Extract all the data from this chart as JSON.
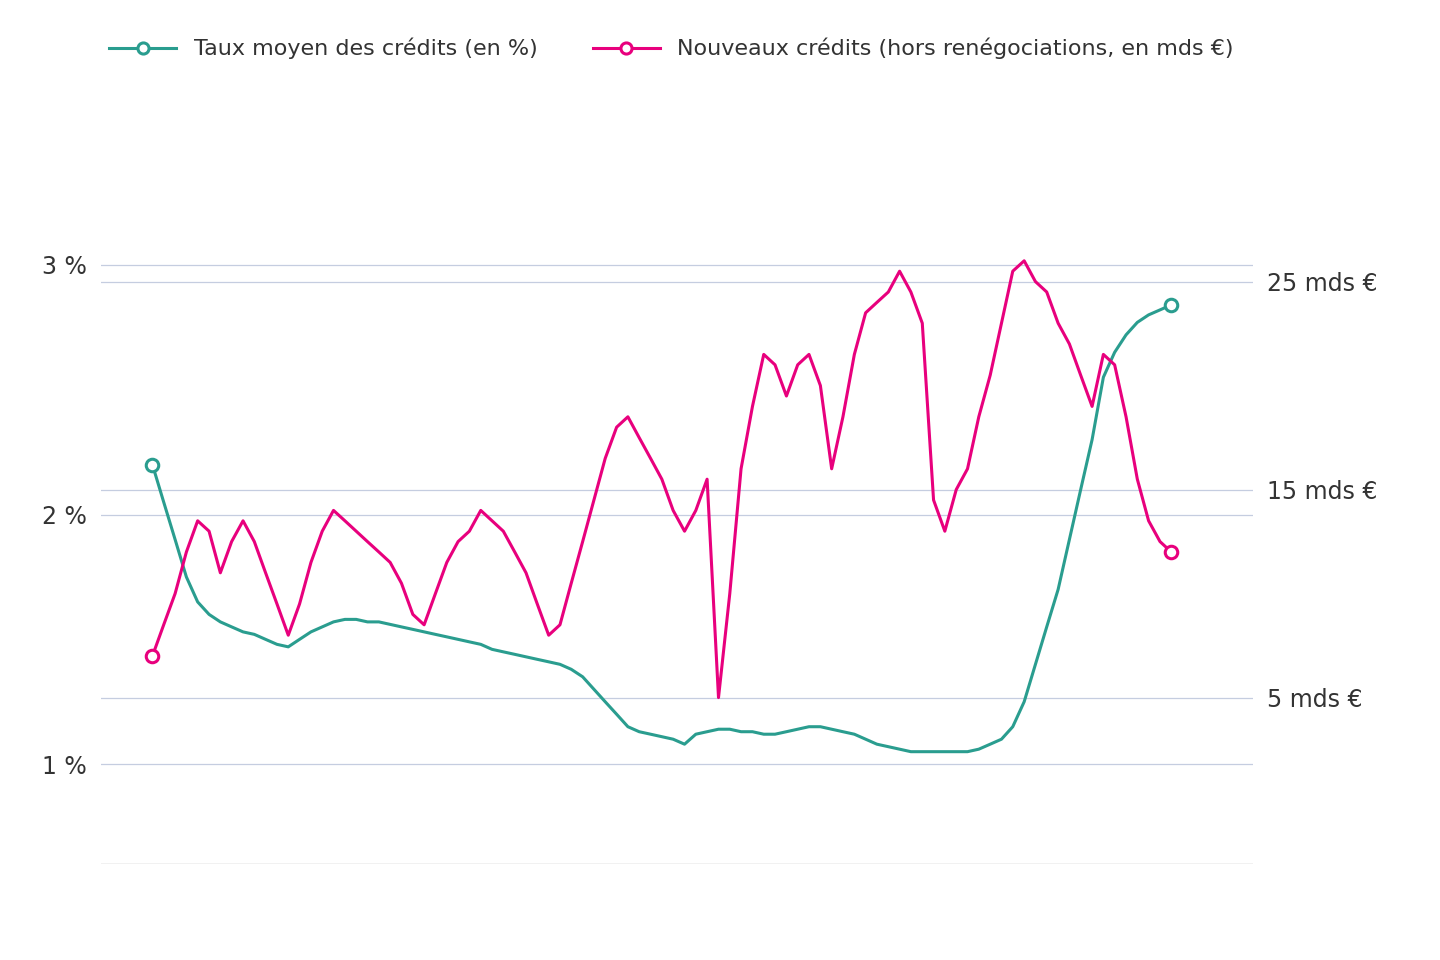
{
  "legend_label_1": "Taux moyen des crédits (en %)",
  "legend_label_2": "Nouveaux crédits (hors renégociations, en mds €)",
  "color_1": "#2a9d8f",
  "color_2": "#e8007d",
  "bg_color": "#ffffff",
  "grid_color": "#c5cde0",
  "xlim_start": 2015.62,
  "xlim_end": 2024.1,
  "ylim_left": [
    0.6,
    3.6
  ],
  "ylim_right": [
    -3,
    33
  ],
  "left_yticks": [
    1,
    2,
    3
  ],
  "left_ytick_labels": [
    "1 %",
    "2 %",
    "3 %"
  ],
  "right_yticks": [
    5,
    15,
    25
  ],
  "right_ytick_labels": [
    "5 mds €",
    "15 mds €",
    "25 mds €"
  ],
  "xticks": [
    2016,
    2018,
    2020,
    2022
  ],
  "taux_x": [
    2016.0,
    2016.083,
    2016.167,
    2016.25,
    2016.333,
    2016.417,
    2016.5,
    2016.583,
    2016.667,
    2016.75,
    2016.833,
    2016.917,
    2017.0,
    2017.083,
    2017.167,
    2017.25,
    2017.333,
    2017.417,
    2017.5,
    2017.583,
    2017.667,
    2017.75,
    2017.833,
    2017.917,
    2018.0,
    2018.083,
    2018.167,
    2018.25,
    2018.333,
    2018.417,
    2018.5,
    2018.583,
    2018.667,
    2018.75,
    2018.833,
    2018.917,
    2019.0,
    2019.083,
    2019.167,
    2019.25,
    2019.333,
    2019.417,
    2019.5,
    2019.583,
    2019.667,
    2019.75,
    2019.833,
    2019.917,
    2020.0,
    2020.083,
    2020.167,
    2020.25,
    2020.333,
    2020.417,
    2020.5,
    2020.583,
    2020.667,
    2020.75,
    2020.833,
    2020.917,
    2021.0,
    2021.083,
    2021.167,
    2021.25,
    2021.333,
    2021.417,
    2021.5,
    2021.583,
    2021.667,
    2021.75,
    2021.833,
    2021.917,
    2022.0,
    2022.083,
    2022.167,
    2022.25,
    2022.333,
    2022.417,
    2022.5,
    2022.583,
    2022.667,
    2022.75,
    2022.833,
    2022.917,
    2023.0,
    2023.083,
    2023.167,
    2023.25,
    2023.333,
    2023.417,
    2023.5
  ],
  "taux_y": [
    2.2,
    2.05,
    1.9,
    1.75,
    1.65,
    1.6,
    1.57,
    1.55,
    1.53,
    1.52,
    1.5,
    1.48,
    1.47,
    1.5,
    1.53,
    1.55,
    1.57,
    1.58,
    1.58,
    1.57,
    1.57,
    1.56,
    1.55,
    1.54,
    1.53,
    1.52,
    1.51,
    1.5,
    1.49,
    1.48,
    1.46,
    1.45,
    1.44,
    1.43,
    1.42,
    1.41,
    1.4,
    1.38,
    1.35,
    1.3,
    1.25,
    1.2,
    1.15,
    1.13,
    1.12,
    1.11,
    1.1,
    1.08,
    1.12,
    1.13,
    1.14,
    1.14,
    1.13,
    1.13,
    1.12,
    1.12,
    1.13,
    1.14,
    1.15,
    1.15,
    1.14,
    1.13,
    1.12,
    1.1,
    1.08,
    1.07,
    1.06,
    1.05,
    1.05,
    1.05,
    1.05,
    1.05,
    1.05,
    1.06,
    1.08,
    1.1,
    1.15,
    1.25,
    1.4,
    1.55,
    1.7,
    1.9,
    2.1,
    2.3,
    2.55,
    2.65,
    2.72,
    2.77,
    2.8,
    2.82,
    2.84
  ],
  "credits_x": [
    2016.0,
    2016.083,
    2016.167,
    2016.25,
    2016.333,
    2016.417,
    2016.5,
    2016.583,
    2016.667,
    2016.75,
    2016.833,
    2016.917,
    2017.0,
    2017.083,
    2017.167,
    2017.25,
    2017.333,
    2017.417,
    2017.5,
    2017.583,
    2017.667,
    2017.75,
    2017.833,
    2017.917,
    2018.0,
    2018.083,
    2018.167,
    2018.25,
    2018.333,
    2018.417,
    2018.5,
    2018.583,
    2018.667,
    2018.75,
    2018.833,
    2018.917,
    2019.0,
    2019.083,
    2019.167,
    2019.25,
    2019.333,
    2019.417,
    2019.5,
    2019.583,
    2019.667,
    2019.75,
    2019.833,
    2019.917,
    2020.0,
    2020.083,
    2020.167,
    2020.25,
    2020.333,
    2020.417,
    2020.5,
    2020.583,
    2020.667,
    2020.75,
    2020.833,
    2020.917,
    2021.0,
    2021.083,
    2021.167,
    2021.25,
    2021.333,
    2021.417,
    2021.5,
    2021.583,
    2021.667,
    2021.75,
    2021.833,
    2021.917,
    2022.0,
    2022.083,
    2022.167,
    2022.25,
    2022.333,
    2022.417,
    2022.5,
    2022.583,
    2022.667,
    2022.75,
    2022.833,
    2022.917,
    2023.0,
    2023.083,
    2023.167,
    2023.25,
    2023.333,
    2023.417,
    2023.5
  ],
  "credits_y": [
    7.0,
    8.5,
    10.0,
    12.0,
    13.5,
    13.0,
    11.0,
    12.5,
    13.5,
    12.5,
    11.0,
    9.5,
    8.0,
    9.5,
    11.5,
    13.0,
    14.0,
    13.5,
    13.0,
    12.5,
    12.0,
    11.5,
    10.5,
    9.0,
    8.5,
    10.0,
    11.5,
    12.5,
    13.0,
    14.0,
    13.5,
    13.0,
    12.0,
    11.0,
    9.5,
    8.0,
    8.5,
    10.5,
    12.5,
    14.5,
    16.5,
    18.0,
    18.5,
    17.5,
    16.5,
    15.5,
    14.0,
    13.0,
    14.0,
    15.5,
    5.0,
    10.0,
    16.0,
    19.0,
    21.5,
    21.0,
    19.5,
    21.0,
    21.5,
    20.0,
    16.0,
    18.5,
    21.5,
    23.5,
    24.0,
    24.5,
    25.5,
    24.5,
    23.0,
    14.5,
    13.0,
    15.0,
    16.0,
    18.5,
    20.5,
    23.0,
    25.5,
    26.0,
    25.0,
    24.5,
    23.0,
    22.0,
    20.5,
    19.0,
    21.5,
    21.0,
    18.5,
    15.5,
    13.5,
    12.5,
    12.0
  ]
}
